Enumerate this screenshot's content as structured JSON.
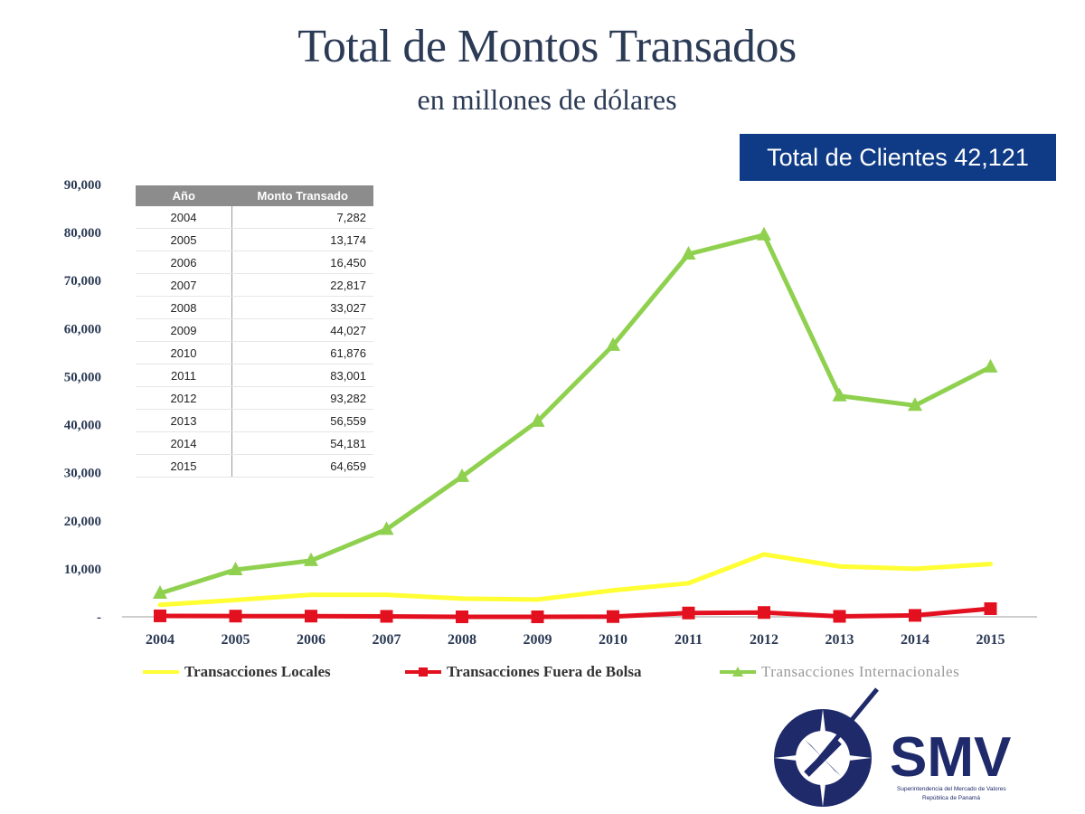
{
  "title": "Total de Montos Transados",
  "subtitle": "en millones de dólares",
  "clients_badge": "Total de Clientes 42,121",
  "table": {
    "headers": [
      "Año",
      "Monto Transado"
    ],
    "rows": [
      [
        "2004",
        "7,282"
      ],
      [
        "2005",
        "13,174"
      ],
      [
        "2006",
        "16,450"
      ],
      [
        "2007",
        "22,817"
      ],
      [
        "2008",
        "33,027"
      ],
      [
        "2009",
        "44,027"
      ],
      [
        "2010",
        "61,876"
      ],
      [
        "2011",
        "83,001"
      ],
      [
        "2012",
        "93,282"
      ],
      [
        "2013",
        "56,559"
      ],
      [
        "2014",
        "54,181"
      ],
      [
        "2015",
        "64,659"
      ]
    ]
  },
  "logo": {
    "text": "SMV",
    "line1": "Superintendencia del Mercado de Valores",
    "line2": "República de Panamá",
    "color": "#1f2a6b"
  },
  "chart_data": {
    "type": "line",
    "categories": [
      "2004",
      "2005",
      "2006",
      "2007",
      "2008",
      "2009",
      "2010",
      "2011",
      "2012",
      "2013",
      "2014",
      "2015"
    ],
    "y_ticks": [
      "-",
      "10,000",
      "20,000",
      "30,000",
      "40,000",
      "50,000",
      "60,000",
      "70,000",
      "80,000",
      "90,000"
    ],
    "ylim": [
      0,
      90000
    ],
    "legend_position": "bottom",
    "series": [
      {
        "name": "Transacciones Locales",
        "color": "#ffff33",
        "marker": "none",
        "values": [
          2500,
          3500,
          4600,
          4600,
          3800,
          3600,
          5500,
          7000,
          13000,
          10500,
          10000,
          11000
        ]
      },
      {
        "name": "Transacciones Fuera de Bolsa",
        "color": "#e3101f",
        "marker": "square",
        "values": [
          200,
          150,
          150,
          100,
          0,
          0,
          50,
          800,
          900,
          100,
          300,
          1700
        ]
      },
      {
        "name": "Transacciones Internacionales",
        "color": "#8fd14f",
        "marker": "triangle",
        "values": [
          4900,
          9800,
          11700,
          18200,
          29200,
          40700,
          56500,
          75500,
          79500,
          46000,
          44000,
          52000
        ]
      }
    ]
  }
}
